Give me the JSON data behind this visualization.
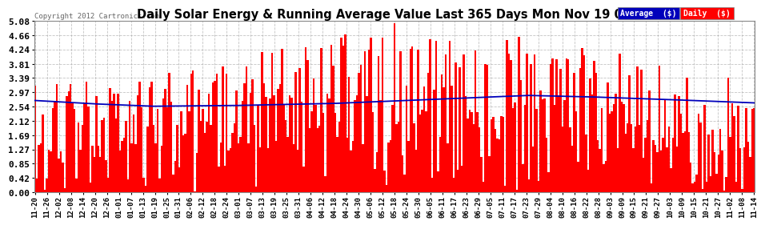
{
  "title": "Daily Solar Energy & Running Average Value Last 365 Days Mon Nov 19 07:07",
  "copyright": "Copyright 2012 Cartronics.com",
  "ylim": [
    0.0,
    5.08
  ],
  "yticks": [
    0.0,
    0.42,
    0.85,
    1.27,
    1.69,
    2.12,
    2.54,
    2.97,
    3.39,
    3.81,
    4.24,
    4.66,
    5.08
  ],
  "bar_color": "#ff0000",
  "avg_color": "#0000bb",
  "background_color": "#ffffff",
  "grid_color": "#aaaaaa",
  "legend_avg_color": "#0000bb",
  "legend_daily_color": "#ff0000",
  "legend_text_color": "#ffffff",
  "n_days": 365,
  "seed": 12345,
  "xtick_labels": [
    "11-20",
    "11-26",
    "12-02",
    "12-08",
    "12-14",
    "12-20",
    "12-26",
    "01-01",
    "01-07",
    "01-13",
    "01-19",
    "01-25",
    "01-31",
    "02-06",
    "02-12",
    "02-18",
    "02-24",
    "03-01",
    "03-07",
    "03-13",
    "03-19",
    "03-25",
    "03-31",
    "04-06",
    "04-12",
    "04-18",
    "04-24",
    "04-30",
    "05-06",
    "05-12",
    "05-18",
    "05-24",
    "05-30",
    "06-05",
    "06-11",
    "06-17",
    "06-23",
    "06-29",
    "07-05",
    "07-11",
    "07-17",
    "07-23",
    "07-29",
    "08-04",
    "08-10",
    "08-16",
    "08-22",
    "08-28",
    "09-03",
    "09-09",
    "09-15",
    "09-21",
    "09-27",
    "10-03",
    "10-09",
    "10-15",
    "10-21",
    "10-27",
    "11-02",
    "11-08",
    "11-14"
  ]
}
